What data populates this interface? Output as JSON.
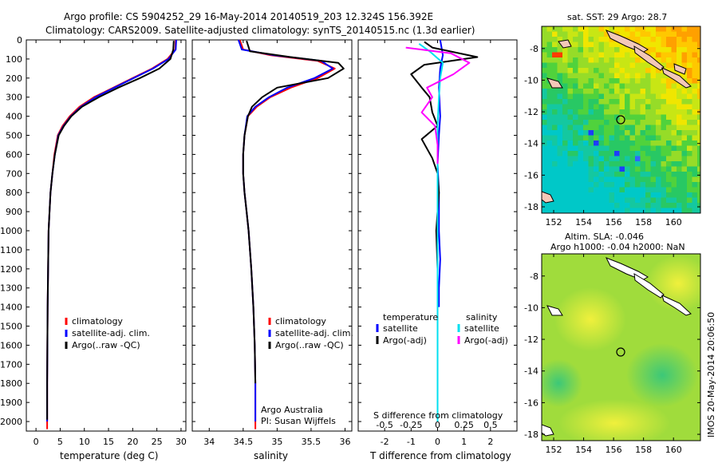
{
  "header": {
    "line1": "Argo profile: CS 5904252_29 16-May-2014 20140519_203 12.324S 156.392E",
    "line2": "Climatology: CARS2009. Satellite-adjusted climatology: synTS_20140515.nc (1.3d earlier)"
  },
  "credit": "IMOS 20-May-2014 20:06:50",
  "colors": {
    "climatology": "#ff0000",
    "satellite": "#0000ff",
    "argo": "#000000",
    "sat_s": "#00e0f0",
    "argo_s": "#ff00ff"
  },
  "chart_data": [
    {
      "id": "temperature",
      "type": "line",
      "xlabel": "temperature (deg C)",
      "xlim": [
        -2,
        31
      ],
      "xticks": [
        0,
        5,
        10,
        15,
        20,
        25,
        30
      ],
      "ylim": [
        2050,
        0
      ],
      "yticks": [
        0,
        100,
        200,
        300,
        400,
        500,
        600,
        700,
        800,
        900,
        1000,
        1100,
        1200,
        1300,
        1400,
        1500,
        1600,
        1700,
        1800,
        1900,
        2000
      ],
      "legend": [
        "climatology",
        "satellite-adj. clim.",
        "Argo(..raw -QC)"
      ],
      "series": [
        {
          "name": "climatology",
          "color": "#ff0000",
          "x": [
            28.9,
            28.8,
            27.2,
            24,
            20,
            16,
            12,
            9,
            7,
            5.5,
            4.5,
            3.8,
            3.4,
            3,
            2.8,
            2.6,
            2.5,
            2.4,
            2.35,
            2.3,
            2.3,
            2.3
          ],
          "y": [
            0,
            50,
            100,
            150,
            200,
            250,
            300,
            350,
            400,
            450,
            500,
            600,
            700,
            800,
            900,
            1000,
            1200,
            1400,
            1600,
            1800,
            2000,
            2040
          ]
        },
        {
          "name": "satellite-adj. clim.",
          "color": "#0000ff",
          "x": [
            29,
            28.9,
            27.4,
            24.2,
            20.2,
            16.2,
            12.3,
            9.3,
            7.2,
            5.7,
            4.6,
            3.9,
            3.4,
            3,
            2.8,
            2.6,
            2.5,
            2.4,
            2.35,
            2.3,
            2.3
          ],
          "y": [
            0,
            50,
            100,
            150,
            200,
            250,
            300,
            350,
            400,
            450,
            500,
            600,
            700,
            800,
            900,
            1000,
            1200,
            1400,
            1600,
            1800,
            2000
          ]
        },
        {
          "name": "Argo(..raw -QC)",
          "color": "#000000",
          "x": [
            28.5,
            28.4,
            27.8,
            25.5,
            21.5,
            17,
            13,
            9.5,
            7.3,
            5.8,
            4.7,
            3.9,
            3.4,
            3,
            2.8,
            2.6,
            2.5,
            2.4,
            2.35,
            2.3,
            2.3
          ],
          "y": [
            5,
            50,
            100,
            150,
            200,
            250,
            300,
            350,
            400,
            450,
            500,
            600,
            700,
            800,
            900,
            1000,
            1200,
            1400,
            1600,
            1800,
            1990
          ]
        }
      ]
    },
    {
      "id": "salinity",
      "type": "line",
      "xlabel": "salinity",
      "xlim": [
        33.75,
        36.1
      ],
      "xticks": [
        34,
        34.5,
        35,
        35.5,
        36
      ],
      "xticklabels": [
        "34",
        "34.5",
        "35",
        "35.5",
        "36"
      ],
      "ylim": [
        2050,
        0
      ],
      "legend": [
        "climatology",
        "satellite-adj. clim.",
        "Argo(..raw -QC)"
      ],
      "annotation": [
        "Argo Australia",
        "PI: Susan Wijffels"
      ],
      "series": [
        {
          "name": "climatology",
          "color": "#ff0000",
          "x": [
            34.45,
            34.5,
            34.9,
            35.6,
            35.85,
            35.6,
            35.2,
            34.9,
            34.7,
            34.57,
            34.52,
            34.5,
            34.5,
            34.52,
            34.55,
            34.58,
            34.62,
            34.65,
            34.67,
            34.68,
            34.68
          ],
          "y": [
            0,
            50,
            80,
            110,
            150,
            200,
            250,
            300,
            350,
            400,
            500,
            600,
            700,
            800,
            900,
            1000,
            1200,
            1400,
            1600,
            1800,
            2040
          ]
        },
        {
          "name": "satellite-adj. clim.",
          "color": "#0000ff",
          "x": [
            34.43,
            34.48,
            34.95,
            35.65,
            35.82,
            35.55,
            35.15,
            34.88,
            34.68,
            34.56,
            34.52,
            34.5,
            34.5,
            34.52,
            34.55,
            34.58,
            34.62,
            34.65,
            34.67,
            34.68,
            34.68
          ],
          "y": [
            0,
            50,
            80,
            110,
            150,
            200,
            250,
            300,
            350,
            400,
            500,
            600,
            700,
            800,
            900,
            1000,
            1200,
            1400,
            1600,
            1800,
            2000
          ]
        },
        {
          "name": "Argo(..raw -QC)",
          "color": "#000000",
          "x": [
            34.55,
            34.6,
            35.2,
            35.9,
            35.98,
            35.75,
            35.0,
            34.78,
            34.63,
            34.57,
            34.52,
            34.5,
            34.5,
            34.52,
            34.55,
            34.58,
            34.62,
            34.65,
            34.67,
            34.68
          ],
          "y": [
            5,
            60,
            90,
            120,
            150,
            200,
            250,
            300,
            350,
            400,
            500,
            600,
            700,
            800,
            900,
            1000,
            1200,
            1400,
            1600,
            1800
          ]
        }
      ]
    },
    {
      "id": "difference",
      "type": "line",
      "xlabel": "T difference from climatology",
      "xlabel2": "S difference from climatology",
      "xlim": [
        -3,
        3
      ],
      "xticks": [
        -2,
        -1,
        0,
        1,
        2
      ],
      "xticks2": [
        -0.5,
        -0.25,
        0,
        0.25,
        0.5
      ],
      "ylim": [
        2050,
        0
      ],
      "legend_left_title": "temperature",
      "legend_right_title": "salinity",
      "legend_left": [
        "satellite",
        "Argo(-adj)"
      ],
      "legend_right": [
        "satellite",
        "Argo(-adj)"
      ],
      "series": [
        {
          "name": "temperature satellite",
          "color": "#0000ff",
          "x": [
            0.1,
            0.2,
            0.1,
            0.05,
            0.1,
            0.05,
            0.0,
            0.05,
            0.05,
            0.1,
            0.05,
            0.05
          ],
          "y": [
            0,
            80,
            150,
            250,
            400,
            500,
            650,
            800,
            1000,
            1150,
            1300,
            1400
          ]
        },
        {
          "name": "temperature Argo(-adj)",
          "color": "#000000",
          "x": [
            -0.5,
            -0.2,
            1.5,
            -0.5,
            -1.0,
            -0.6,
            -0.3,
            -0.2,
            0.0,
            -0.6,
            -0.2,
            0.0,
            0.05,
            0.0,
            -0.05,
            0.0,
            0.0,
            0.0,
            0.0,
            0.0
          ],
          "y": [
            10,
            40,
            90,
            130,
            180,
            250,
            300,
            380,
            450,
            520,
            620,
            700,
            800,
            900,
            1000,
            1200,
            1400,
            1600,
            1800,
            1950
          ]
        },
        {
          "name": "salinity satellite",
          "color": "#00e0f0",
          "x": [
            -0.7,
            -0.3,
            0.2,
            0.1,
            0.05,
            0.0,
            0.0,
            0.0,
            0.0,
            0.0,
            0.0
          ],
          "y": [
            20,
            60,
            120,
            200,
            300,
            450,
            600,
            900,
            1200,
            1600,
            2000
          ]
        },
        {
          "name": "salinity Argo(-adj)",
          "color": "#ff00ff",
          "x": [
            -1.2,
            0.5,
            1.2,
            0.6,
            -0.4,
            -0.2,
            -0.6,
            -0.1,
            0.0,
            0.0
          ],
          "y": [
            40,
            70,
            120,
            180,
            250,
            300,
            380,
            450,
            550,
            650
          ]
        }
      ]
    },
    {
      "id": "sst-map",
      "type": "heatmap",
      "title": "sat. SST: 29 Argo: 28.7",
      "xlim": [
        151.2,
        161.8
      ],
      "ylim": [
        -18.4,
        -6.6
      ],
      "xticks": [
        152,
        154,
        156,
        158,
        160
      ],
      "yticks": [
        -8,
        -10,
        -12,
        -14,
        -16,
        -18
      ],
      "marker": {
        "lon": 156.4,
        "lat": -12.3
      }
    },
    {
      "id": "sla-map",
      "type": "heatmap",
      "title": "Altim. SLA: -0.046",
      "title2": "Argo h1000: -0.04 h2000: NaN",
      "xlim": [
        151.2,
        161.8
      ],
      "ylim": [
        -18.4,
        -6.6
      ],
      "xticks": [
        152,
        154,
        156,
        158,
        160
      ],
      "yticks": [
        -8,
        -10,
        -12,
        -14,
        -16,
        -18
      ],
      "marker": {
        "lon": 156.4,
        "lat": -12.3
      }
    }
  ]
}
